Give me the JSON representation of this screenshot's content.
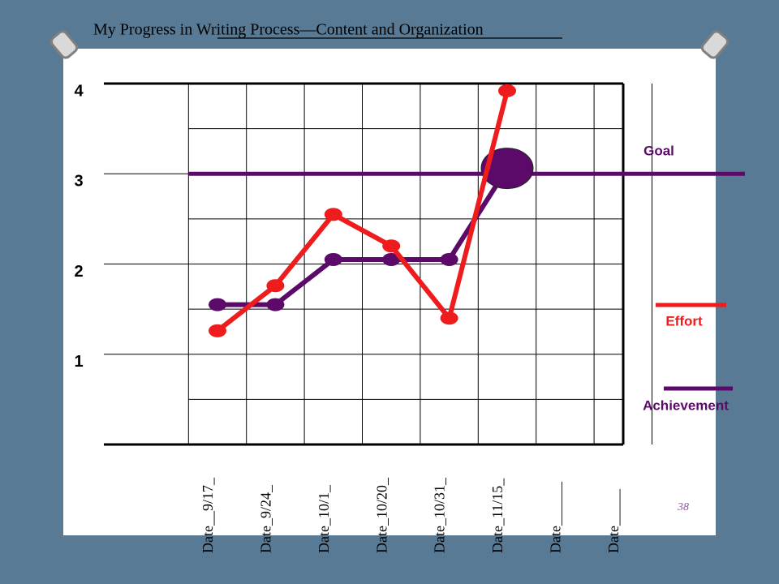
{
  "chart_data": {
    "type": "line",
    "title": "My Progress in Writing Process—Content and Organization",
    "categories": [
      "Date__9/17_",
      "Date_9/24_",
      "Date_10/1_",
      "Date_10/20_",
      "Date_10/31_",
      "Date_11/15_",
      "Date______",
      "Date_____"
    ],
    "series": [
      {
        "name": "Effort",
        "color": "#ee1c1c",
        "values": [
          1.26,
          1.76,
          2.55,
          2.2,
          1.4,
          3.92,
          null,
          null
        ]
      },
      {
        "name": "Achievement",
        "color": "#5c0a6a",
        "values": [
          1.55,
          1.55,
          2.05,
          2.05,
          2.05,
          3.06,
          null,
          null
        ]
      }
    ],
    "goal": {
      "label": "Goal",
      "value": 3,
      "color": "#5c0a6a"
    },
    "ylim": [
      0,
      4
    ],
    "yticks": [
      1,
      2,
      3,
      4
    ],
    "grid": true
  },
  "slide_number": "38"
}
